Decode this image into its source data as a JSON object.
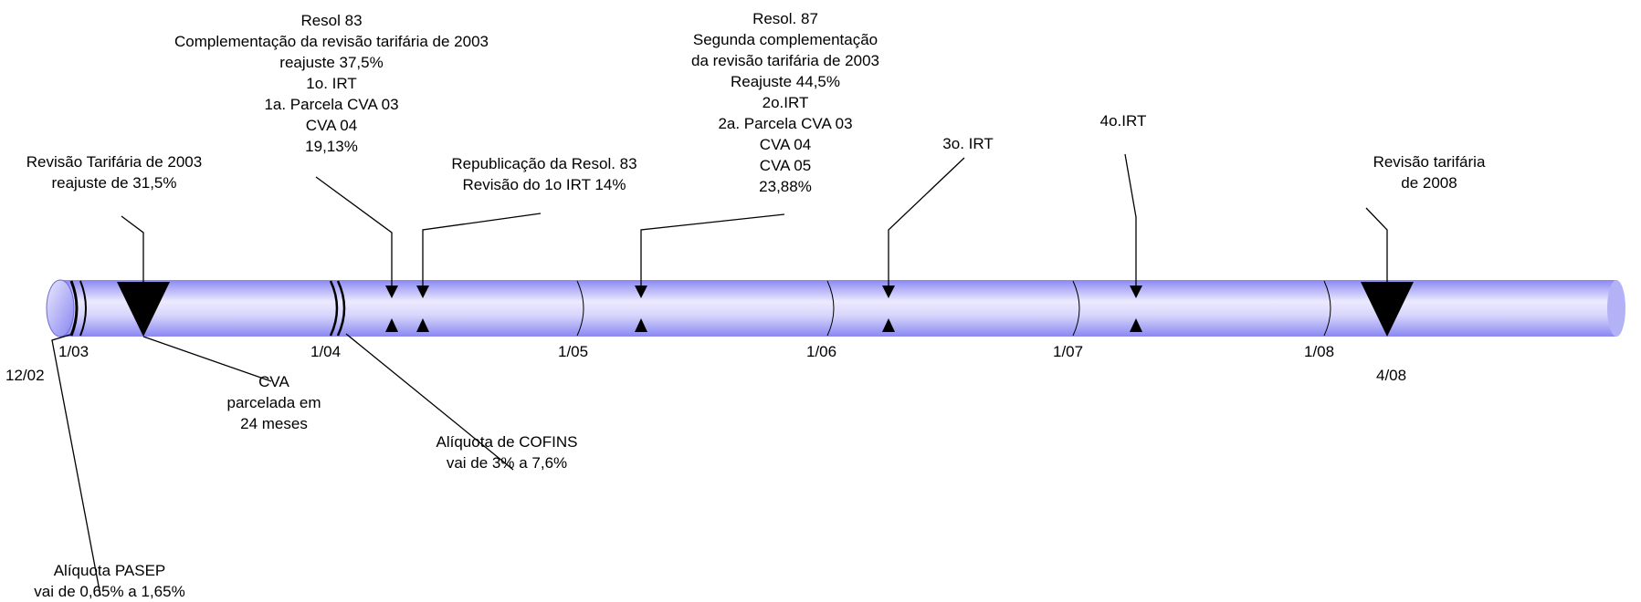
{
  "timeline": {
    "bar_color": "#8a88f2",
    "bar_highlight": "#eceafe",
    "ticks": [
      {
        "label": "1/03"
      },
      {
        "label": "12/02"
      },
      {
        "label": "1/04"
      },
      {
        "label": "1/05"
      },
      {
        "label": "1/06"
      },
      {
        "label": "1/07"
      },
      {
        "label": "1/08"
      },
      {
        "label": "4/08"
      }
    ]
  },
  "annotations": {
    "revisao_2003": {
      "lines": [
        "Revisão Tarifária de 2003",
        "reajuste de 31,5%"
      ]
    },
    "resol_83": {
      "lines": [
        "Resol 83",
        "Complementação da revisão tarifária de 2003",
        "reajuste 37,5%",
        "1o. IRT",
        "1a. Parcela CVA 03",
        "CVA 04",
        "19,13%"
      ]
    },
    "republicacao": {
      "lines": [
        "Republicação da Resol. 83",
        "Revisão do 1o IRT 14%"
      ]
    },
    "resol_87": {
      "lines": [
        "Resol. 87",
        "Segunda complementação",
        "da revisão tarifária de 2003",
        "Reajuste 44,5%",
        "2o.IRT",
        "2a. Parcela CVA 03",
        "CVA 04",
        "CVA 05",
        "23,88%"
      ]
    },
    "irt_3": {
      "lines": [
        "3o. IRT"
      ]
    },
    "irt_4": {
      "lines": [
        "4o.IRT"
      ]
    },
    "revisao_2008": {
      "lines": [
        "Revisão tarifária",
        "de 2008"
      ]
    },
    "cva_parcelada": {
      "lines": [
        "CVA",
        "parcelada em",
        "24 meses"
      ]
    },
    "cofins": {
      "lines": [
        "Alíquota de COFINS",
        "vai de 3% a 7,6%"
      ]
    },
    "pasep": {
      "lines": [
        "Alíquota PASEP",
        "vai de 0,65% a 1,65%"
      ]
    }
  }
}
